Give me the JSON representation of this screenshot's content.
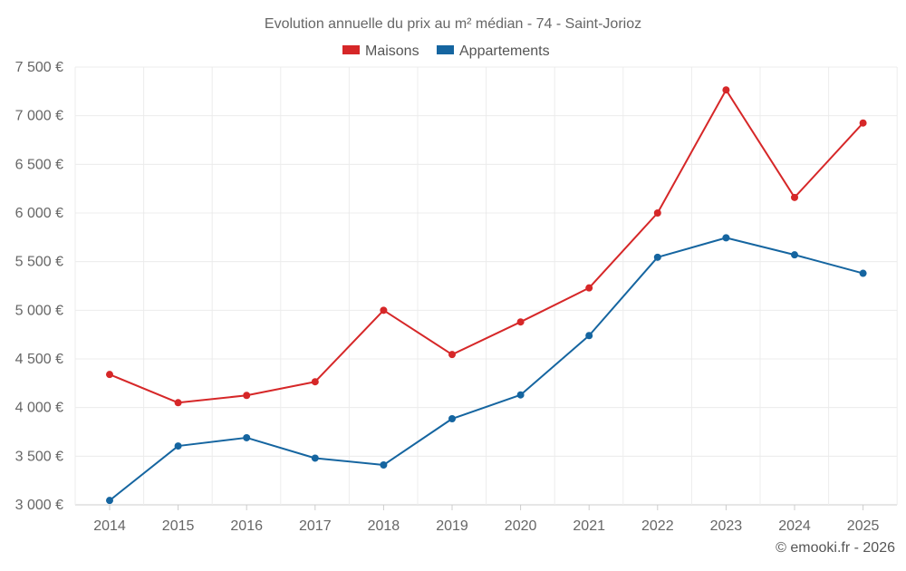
{
  "chart_data": {
    "type": "line",
    "title": "Evolution annuelle du prix au m² médian - 74 - Saint-Jorioz",
    "categories": [
      "2014",
      "2015",
      "2016",
      "2017",
      "2018",
      "2019",
      "2020",
      "2021",
      "2022",
      "2023",
      "2024",
      "2025"
    ],
    "series": [
      {
        "name": "Maisons",
        "color": "#d62728",
        "values": [
          4340,
          4050,
          4125,
          4265,
          5000,
          4545,
          4880,
          5230,
          6000,
          7265,
          6160,
          6925
        ]
      },
      {
        "name": "Appartements",
        "color": "#1565a0",
        "values": [
          3045,
          3605,
          3690,
          3480,
          3410,
          3885,
          4130,
          4740,
          5545,
          5745,
          5570,
          5380
        ]
      }
    ],
    "ylim": [
      3000,
      7500
    ],
    "yticks": [
      3000,
      3500,
      4000,
      4500,
      5000,
      5500,
      6000,
      6500,
      7000,
      7500
    ],
    "ytick_labels": [
      "3 000 €",
      "3 500 €",
      "4 000 €",
      "4 500 €",
      "5 000 €",
      "5 500 €",
      "6 000 €",
      "6 500 €",
      "7 000 €",
      "7 500 €"
    ],
    "xlabel": "",
    "ylabel": "",
    "grid": true,
    "legend_position": "top-center"
  },
  "credit": "© emooki.fr - 2026"
}
